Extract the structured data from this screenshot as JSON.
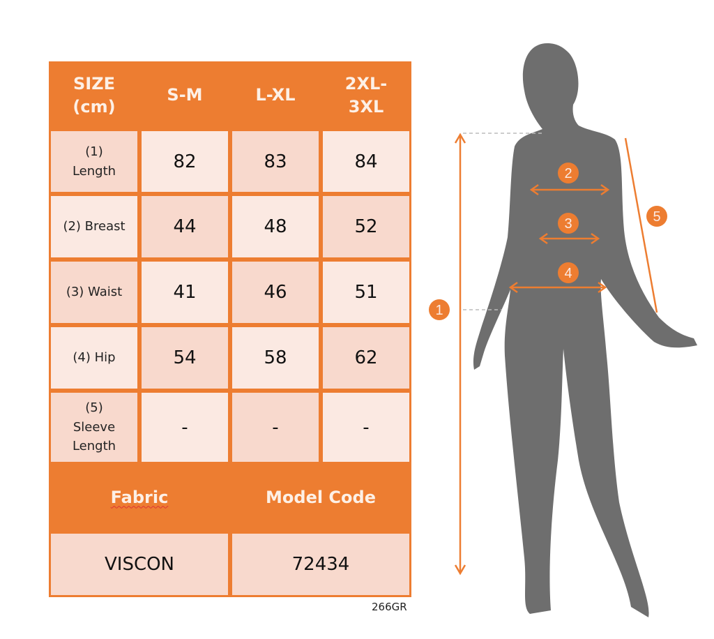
{
  "colors": {
    "accent": "#ed7d31",
    "cell_dark": "#f8d9cd",
    "cell_light": "#fbe9e2",
    "silhouette": "#6e6e6e"
  },
  "table": {
    "header": [
      "SIZE\n(cm)",
      "S-M",
      "L-XL",
      "2XL-\n3XL"
    ],
    "rows": [
      {
        "label": "(1)\nLength",
        "values": [
          "82",
          "83",
          "84"
        ]
      },
      {
        "label": "(2) Breast",
        "values": [
          "44",
          "48",
          "52"
        ]
      },
      {
        "label": "(3) Waist",
        "values": [
          "41",
          "46",
          "51"
        ]
      },
      {
        "label": "(4) Hip",
        "values": [
          "54",
          "58",
          "62"
        ]
      },
      {
        "label": "(5)\nSleeve\nLength",
        "values": [
          "-",
          "-",
          "-"
        ]
      }
    ],
    "fabric_label": "Fabric",
    "model_code_label": "Model Code",
    "fabric_value": "VISCON",
    "model_code_value": "72434"
  },
  "code": "266GR",
  "figure": {
    "markers": [
      "1",
      "2",
      "3",
      "4",
      "5"
    ]
  }
}
